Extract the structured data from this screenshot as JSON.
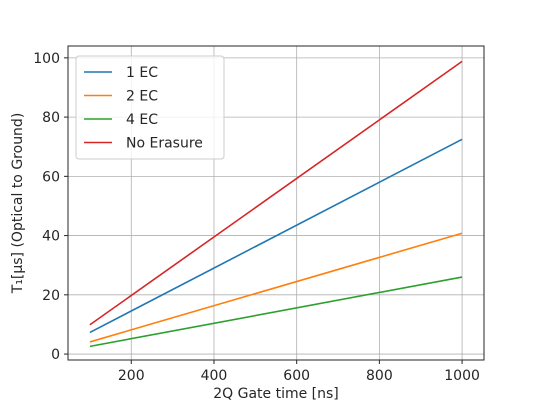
{
  "chart_data": {
    "type": "line",
    "xlabel": "2Q Gate time [ns]",
    "ylabel": "T₁[μs] (Optical to Ground)",
    "xlim": [
      47,
      1053
    ],
    "ylim": [
      -2,
      104
    ],
    "x_ticks": [
      200,
      400,
      600,
      800,
      1000
    ],
    "y_ticks": [
      0,
      20,
      40,
      60,
      80,
      100
    ],
    "grid": true,
    "legend_position": "top-left",
    "x": [
      100,
      1000
    ],
    "series": [
      {
        "name": "1 EC",
        "color": "#1f77b4",
        "values": [
          7.3,
          72.5
        ]
      },
      {
        "name": "2 EC",
        "color": "#ff7f0e",
        "values": [
          4.1,
          40.8
        ]
      },
      {
        "name": "4 EC",
        "color": "#2ca02c",
        "values": [
          2.6,
          26.0
        ]
      },
      {
        "name": "No Erasure",
        "color": "#d62728",
        "values": [
          9.9,
          98.8
        ]
      }
    ]
  }
}
